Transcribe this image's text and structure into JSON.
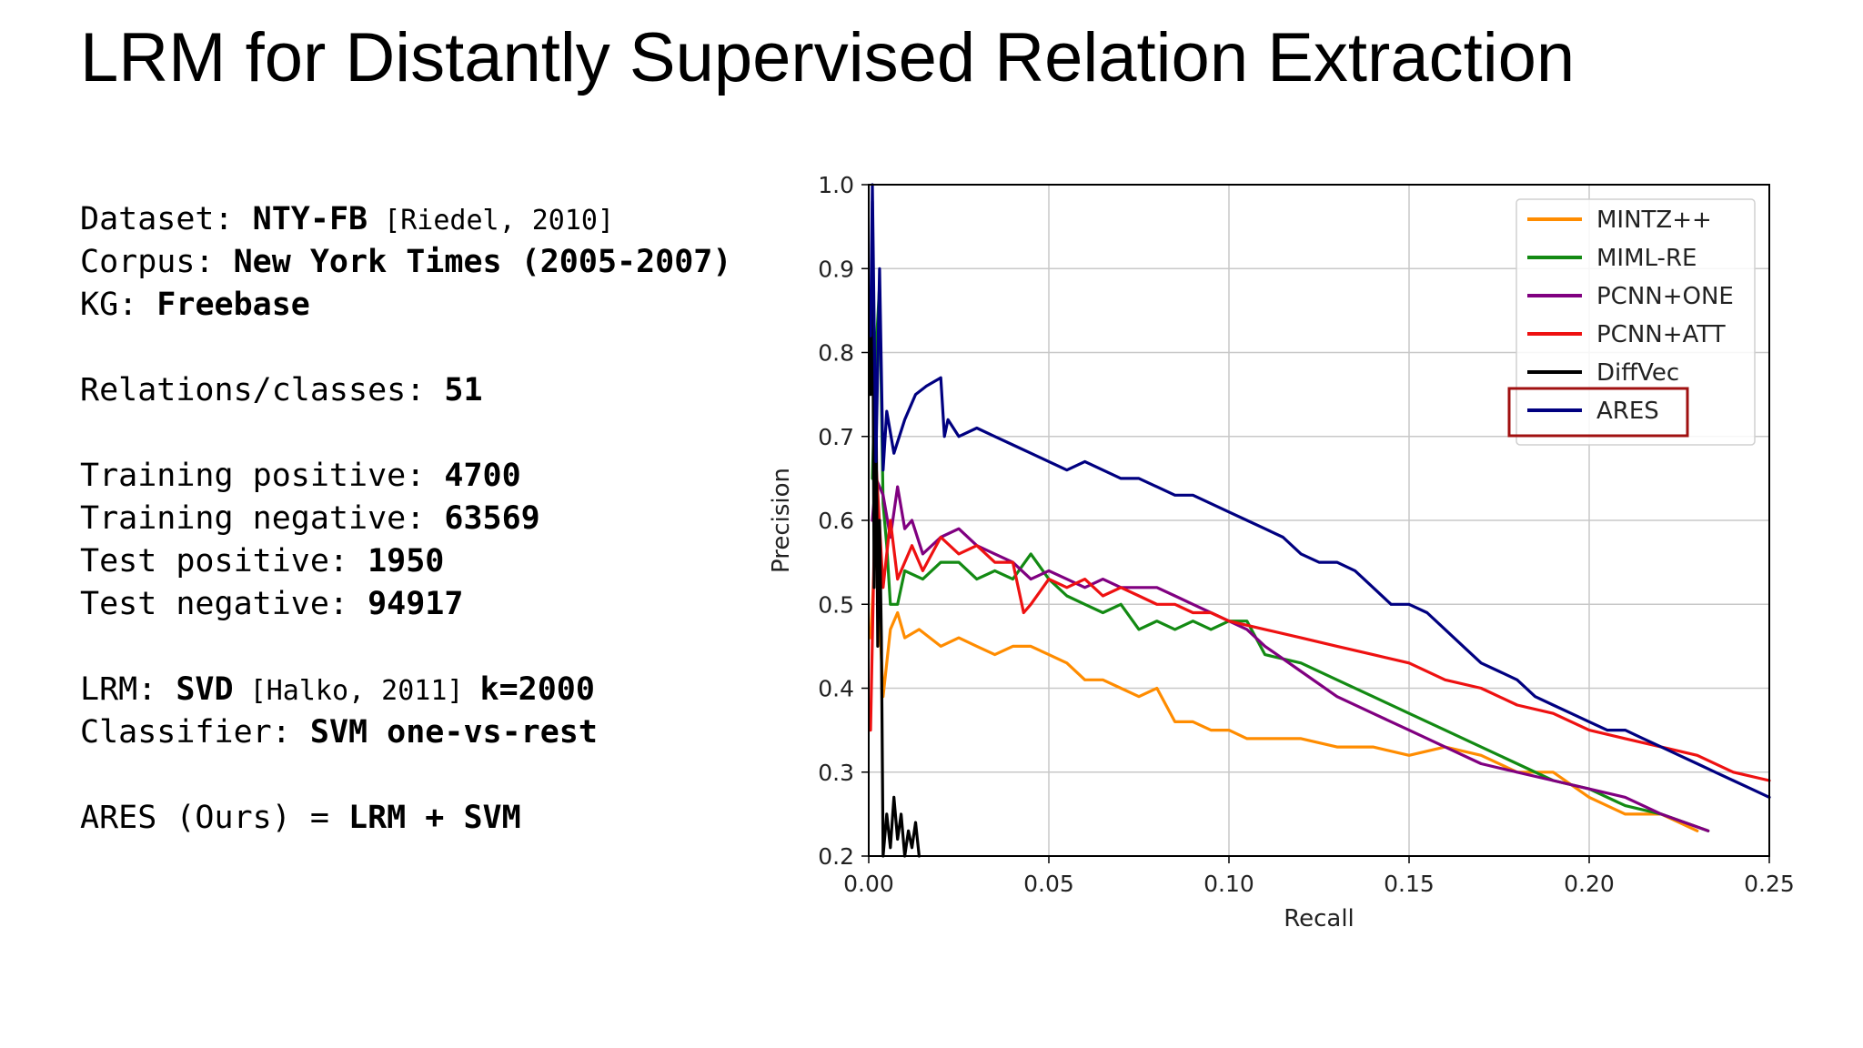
{
  "slide": {
    "title": "LRM for Distantly Supervised Relation Extraction"
  },
  "info": {
    "dataset": {
      "label": "Dataset: ",
      "value": "NTY-FB",
      "cite": " [Riedel, 2010]"
    },
    "corpus": {
      "label": "Corpus: ",
      "value": "New York Times (2005-2007)"
    },
    "kg": {
      "label": "KG: ",
      "value": "Freebase"
    },
    "relations": {
      "label": "Relations/classes: ",
      "value": "51"
    },
    "train_pos": {
      "label": "Training positive: ",
      "value": "4700"
    },
    "train_neg": {
      "label": "Training negative: ",
      "value": "63569"
    },
    "test_pos": {
      "label": "Test positive: ",
      "value": "1950"
    },
    "test_neg": {
      "label": "Test negative: ",
      "value": "94917"
    },
    "lrm": {
      "label": "LRM: ",
      "value": "SVD",
      "cite": " [Halko, 2011] ",
      "value2": "k=2000"
    },
    "classifier": {
      "label": "Classifier: ",
      "value": "SVM one-vs-rest"
    },
    "ares": {
      "label": "ARES (Ours) = ",
      "value": "LRM + SVM"
    }
  },
  "chart_data": {
    "type": "line",
    "xlabel": "Recall",
    "ylabel": "Precision",
    "xlim": [
      0,
      0.25
    ],
    "ylim": [
      0.2,
      1.0
    ],
    "xticks": [
      "0.00",
      "0.05",
      "0.10",
      "0.15",
      "0.20",
      "0.25"
    ],
    "yticks": [
      "0.2",
      "0.3",
      "0.4",
      "0.5",
      "0.6",
      "0.7",
      "0.8",
      "0.9",
      "1.0"
    ],
    "grid": true,
    "legend_position": "top-right",
    "highlighted_series": "ARES",
    "series": [
      {
        "name": "MINTZ++",
        "color": "#ff8c00",
        "x": [
          0.0005,
          0.002,
          0.004,
          0.006,
          0.008,
          0.01,
          0.014,
          0.02,
          0.025,
          0.03,
          0.035,
          0.04,
          0.045,
          0.05,
          0.055,
          0.06,
          0.065,
          0.07,
          0.075,
          0.08,
          0.085,
          0.09,
          0.095,
          0.1,
          0.105,
          0.11,
          0.12,
          0.13,
          0.14,
          0.15,
          0.16,
          0.17,
          0.18,
          0.19,
          0.2,
          0.21,
          0.22,
          0.23
        ],
        "y": [
          0.46,
          0.58,
          0.39,
          0.47,
          0.49,
          0.46,
          0.47,
          0.45,
          0.46,
          0.45,
          0.44,
          0.45,
          0.45,
          0.44,
          0.43,
          0.41,
          0.41,
          0.4,
          0.39,
          0.4,
          0.36,
          0.36,
          0.35,
          0.35,
          0.34,
          0.34,
          0.34,
          0.33,
          0.33,
          0.32,
          0.33,
          0.32,
          0.3,
          0.3,
          0.27,
          0.25,
          0.25,
          0.23
        ]
      },
      {
        "name": "MIML-RE",
        "color": "#138a13",
        "x": [
          0.001,
          0.002,
          0.003,
          0.004,
          0.005,
          0.006,
          0.008,
          0.01,
          0.015,
          0.02,
          0.025,
          0.03,
          0.035,
          0.04,
          0.045,
          0.05,
          0.055,
          0.06,
          0.065,
          0.07,
          0.075,
          0.08,
          0.085,
          0.09,
          0.095,
          0.1,
          0.105,
          0.11,
          0.12,
          0.13,
          0.14,
          0.15,
          0.16,
          0.17,
          0.18,
          0.19,
          0.2,
          0.21,
          0.22,
          0.233
        ],
        "y": [
          0.65,
          0.8,
          0.88,
          0.62,
          0.57,
          0.5,
          0.5,
          0.54,
          0.53,
          0.55,
          0.55,
          0.53,
          0.54,
          0.53,
          0.56,
          0.53,
          0.51,
          0.5,
          0.49,
          0.5,
          0.47,
          0.48,
          0.47,
          0.48,
          0.47,
          0.48,
          0.48,
          0.44,
          0.43,
          0.41,
          0.39,
          0.37,
          0.35,
          0.33,
          0.31,
          0.29,
          0.28,
          0.26,
          0.25,
          0.23
        ]
      },
      {
        "name": "PCNN+ONE",
        "color": "#800080",
        "x": [
          0.001,
          0.002,
          0.004,
          0.006,
          0.008,
          0.01,
          0.012,
          0.015,
          0.02,
          0.025,
          0.03,
          0.035,
          0.04,
          0.045,
          0.05,
          0.055,
          0.06,
          0.065,
          0.07,
          0.075,
          0.08,
          0.085,
          0.09,
          0.095,
          0.1,
          0.105,
          0.11,
          0.12,
          0.13,
          0.14,
          0.15,
          0.16,
          0.17,
          0.18,
          0.19,
          0.2,
          0.21,
          0.22,
          0.233
        ],
        "y": [
          0.6,
          0.65,
          0.63,
          0.58,
          0.64,
          0.59,
          0.6,
          0.56,
          0.58,
          0.59,
          0.57,
          0.56,
          0.55,
          0.53,
          0.54,
          0.53,
          0.52,
          0.53,
          0.52,
          0.52,
          0.52,
          0.51,
          0.5,
          0.49,
          0.48,
          0.47,
          0.45,
          0.42,
          0.39,
          0.37,
          0.35,
          0.33,
          0.31,
          0.3,
          0.29,
          0.28,
          0.27,
          0.25,
          0.23
        ]
      },
      {
        "name": "PCNN+ATT",
        "color": "#ee1111",
        "x": [
          0.0005,
          0.002,
          0.004,
          0.006,
          0.008,
          0.01,
          0.012,
          0.015,
          0.02,
          0.025,
          0.03,
          0.035,
          0.04,
          0.043,
          0.045,
          0.05,
          0.055,
          0.06,
          0.065,
          0.07,
          0.075,
          0.08,
          0.085,
          0.09,
          0.095,
          0.1,
          0.11,
          0.12,
          0.13,
          0.14,
          0.15,
          0.16,
          0.17,
          0.18,
          0.19,
          0.2,
          0.21,
          0.22,
          0.23,
          0.24,
          0.25
        ],
        "y": [
          0.35,
          0.67,
          0.52,
          0.6,
          0.53,
          0.55,
          0.57,
          0.54,
          0.58,
          0.56,
          0.57,
          0.55,
          0.55,
          0.49,
          0.5,
          0.53,
          0.52,
          0.53,
          0.51,
          0.52,
          0.51,
          0.5,
          0.5,
          0.49,
          0.49,
          0.48,
          0.47,
          0.46,
          0.45,
          0.44,
          0.43,
          0.41,
          0.4,
          0.38,
          0.37,
          0.35,
          0.34,
          0.33,
          0.32,
          0.3,
          0.29
        ]
      },
      {
        "name": "DiffVec",
        "color": "#000000",
        "x": [
          0.0005,
          0.001,
          0.0015,
          0.002,
          0.0025,
          0.003,
          0.0035,
          0.004,
          0.005,
          0.006,
          0.007,
          0.008,
          0.009,
          0.01,
          0.011,
          0.012,
          0.013,
          0.014
        ],
        "y": [
          0.75,
          0.98,
          0.52,
          0.77,
          0.45,
          0.6,
          0.46,
          0.2,
          0.25,
          0.21,
          0.27,
          0.22,
          0.25,
          0.2,
          0.23,
          0.21,
          0.24,
          0.2
        ]
      },
      {
        "name": "ARES",
        "color": "#000080",
        "x": [
          0.0005,
          0.001,
          0.002,
          0.003,
          0.004,
          0.005,
          0.007,
          0.01,
          0.013,
          0.016,
          0.02,
          0.021,
          0.022,
          0.025,
          0.03,
          0.035,
          0.04,
          0.045,
          0.05,
          0.055,
          0.06,
          0.065,
          0.07,
          0.075,
          0.08,
          0.085,
          0.09,
          0.095,
          0.1,
          0.105,
          0.11,
          0.115,
          0.12,
          0.125,
          0.13,
          0.135,
          0.14,
          0.145,
          0.15,
          0.155,
          0.16,
          0.165,
          0.17,
          0.175,
          0.18,
          0.185,
          0.19,
          0.195,
          0.2,
          0.205,
          0.21,
          0.215,
          0.22,
          0.225,
          0.23,
          0.235,
          0.24,
          0.245,
          0.25
        ],
        "y": [
          0.82,
          1.0,
          0.67,
          0.9,
          0.66,
          0.73,
          0.68,
          0.72,
          0.75,
          0.76,
          0.77,
          0.7,
          0.72,
          0.7,
          0.71,
          0.7,
          0.69,
          0.68,
          0.67,
          0.66,
          0.67,
          0.66,
          0.65,
          0.65,
          0.64,
          0.63,
          0.63,
          0.62,
          0.61,
          0.6,
          0.59,
          0.58,
          0.56,
          0.55,
          0.55,
          0.54,
          0.52,
          0.5,
          0.5,
          0.49,
          0.47,
          0.45,
          0.43,
          0.42,
          0.41,
          0.39,
          0.38,
          0.37,
          0.36,
          0.35,
          0.35,
          0.34,
          0.33,
          0.32,
          0.31,
          0.3,
          0.29,
          0.28,
          0.27
        ]
      }
    ]
  }
}
